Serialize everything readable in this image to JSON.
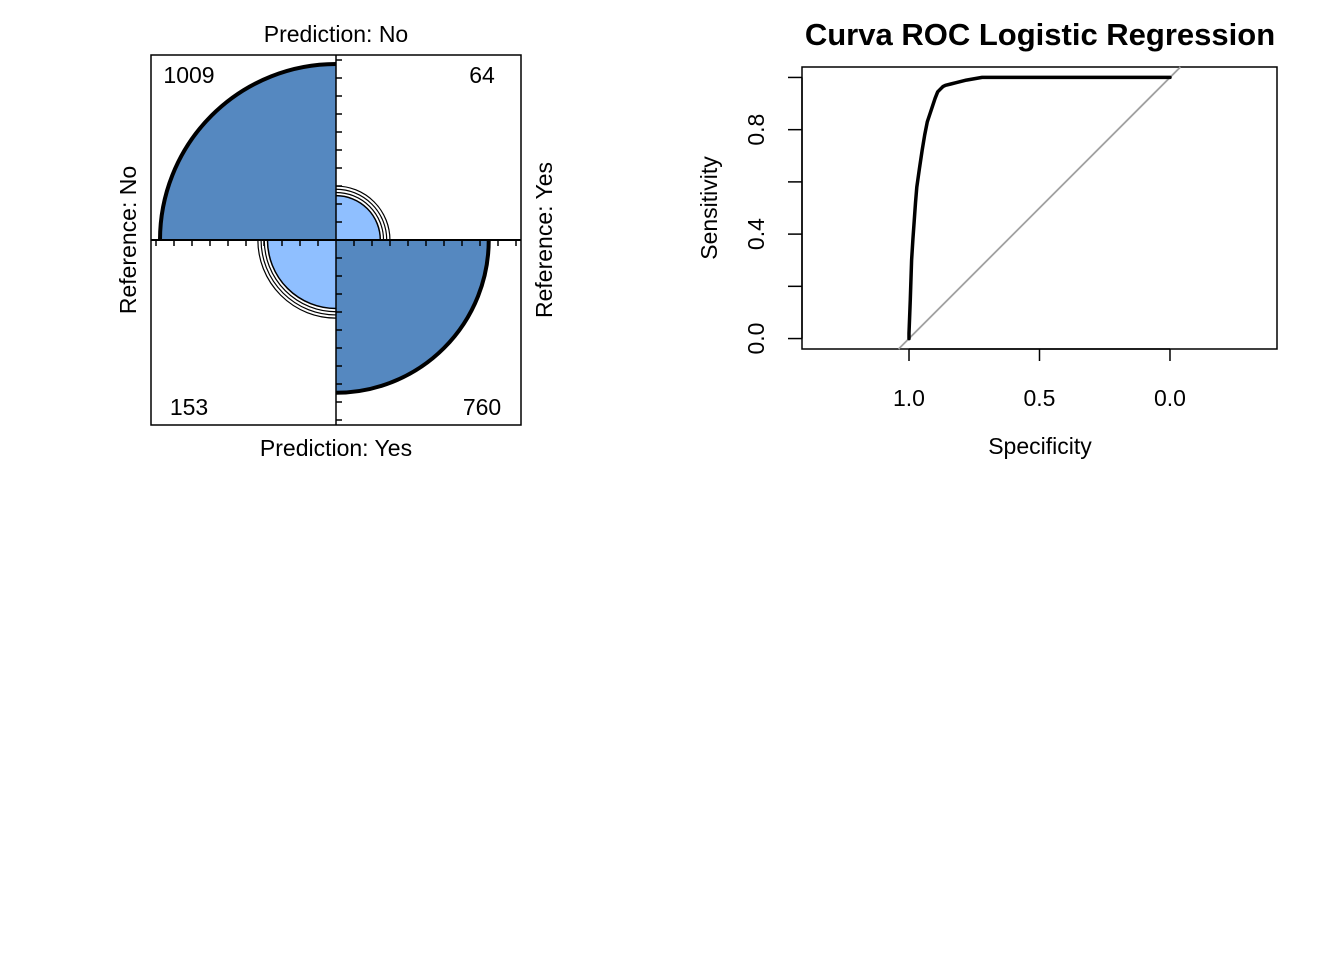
{
  "colors": {
    "major_fill": "#5588C0",
    "minor_fill": "#8FBFFF",
    "ink": "#000000",
    "diagonal": "#A0A0A0",
    "background": "#FFFFFF"
  },
  "chart_data": [
    {
      "type": "fourfold",
      "title": "",
      "labels": {
        "top": "Prediction: No",
        "bottom": "Prediction: Yes",
        "left": "Reference: No",
        "right": "Reference: Yes"
      },
      "cells": [
        {
          "prediction": "No",
          "reference": "No",
          "value": 1009,
          "label": "1009"
        },
        {
          "prediction": "No",
          "reference": "Yes",
          "value": 64,
          "label": "64"
        },
        {
          "prediction": "Yes",
          "reference": "No",
          "value": 153,
          "label": "153"
        },
        {
          "prediction": "Yes",
          "reference": "Yes",
          "value": 760,
          "label": "760"
        }
      ],
      "confidence_rings": 3
    },
    {
      "type": "line",
      "title": "Curva ROC Logistic Regression",
      "xlabel": "Specificity",
      "ylabel": "Sensitivity",
      "x_reversed": true,
      "xlim": [
        1.41,
        -0.41
      ],
      "ylim": [
        -0.04,
        1.04
      ],
      "x_ticks": [
        1.0,
        0.5,
        0.0
      ],
      "x_tick_labels": [
        "1.0",
        "0.5",
        "0.0"
      ],
      "y_ticks": [
        0.0,
        0.2,
        0.4,
        0.6,
        0.8,
        1.0
      ],
      "y_tick_labels": [
        "0.0",
        "",
        "0.4",
        "",
        "0.8",
        ""
      ],
      "grid": false,
      "series": [
        {
          "x": [
            1.0,
            1.0,
            0.995,
            0.99,
            0.985,
            0.98,
            0.975,
            0.97,
            0.96,
            0.95,
            0.94,
            0.93,
            0.92,
            0.91,
            0.9,
            0.89,
            0.88,
            0.87,
            0.86,
            0.84,
            0.82,
            0.78,
            0.72,
            0.6,
            0.4,
            0.2,
            0.0
          ],
          "y": [
            0.0,
            0.02,
            0.15,
            0.3,
            0.38,
            0.45,
            0.52,
            0.58,
            0.65,
            0.72,
            0.78,
            0.83,
            0.86,
            0.89,
            0.92,
            0.945,
            0.955,
            0.965,
            0.97,
            0.975,
            0.98,
            0.99,
            1.0,
            1.0,
            1.0,
            1.0,
            1.0
          ]
        }
      ],
      "reference_line": {
        "x": [
          1.04,
          -0.04
        ],
        "y": [
          -0.04,
          1.04
        ]
      }
    }
  ]
}
